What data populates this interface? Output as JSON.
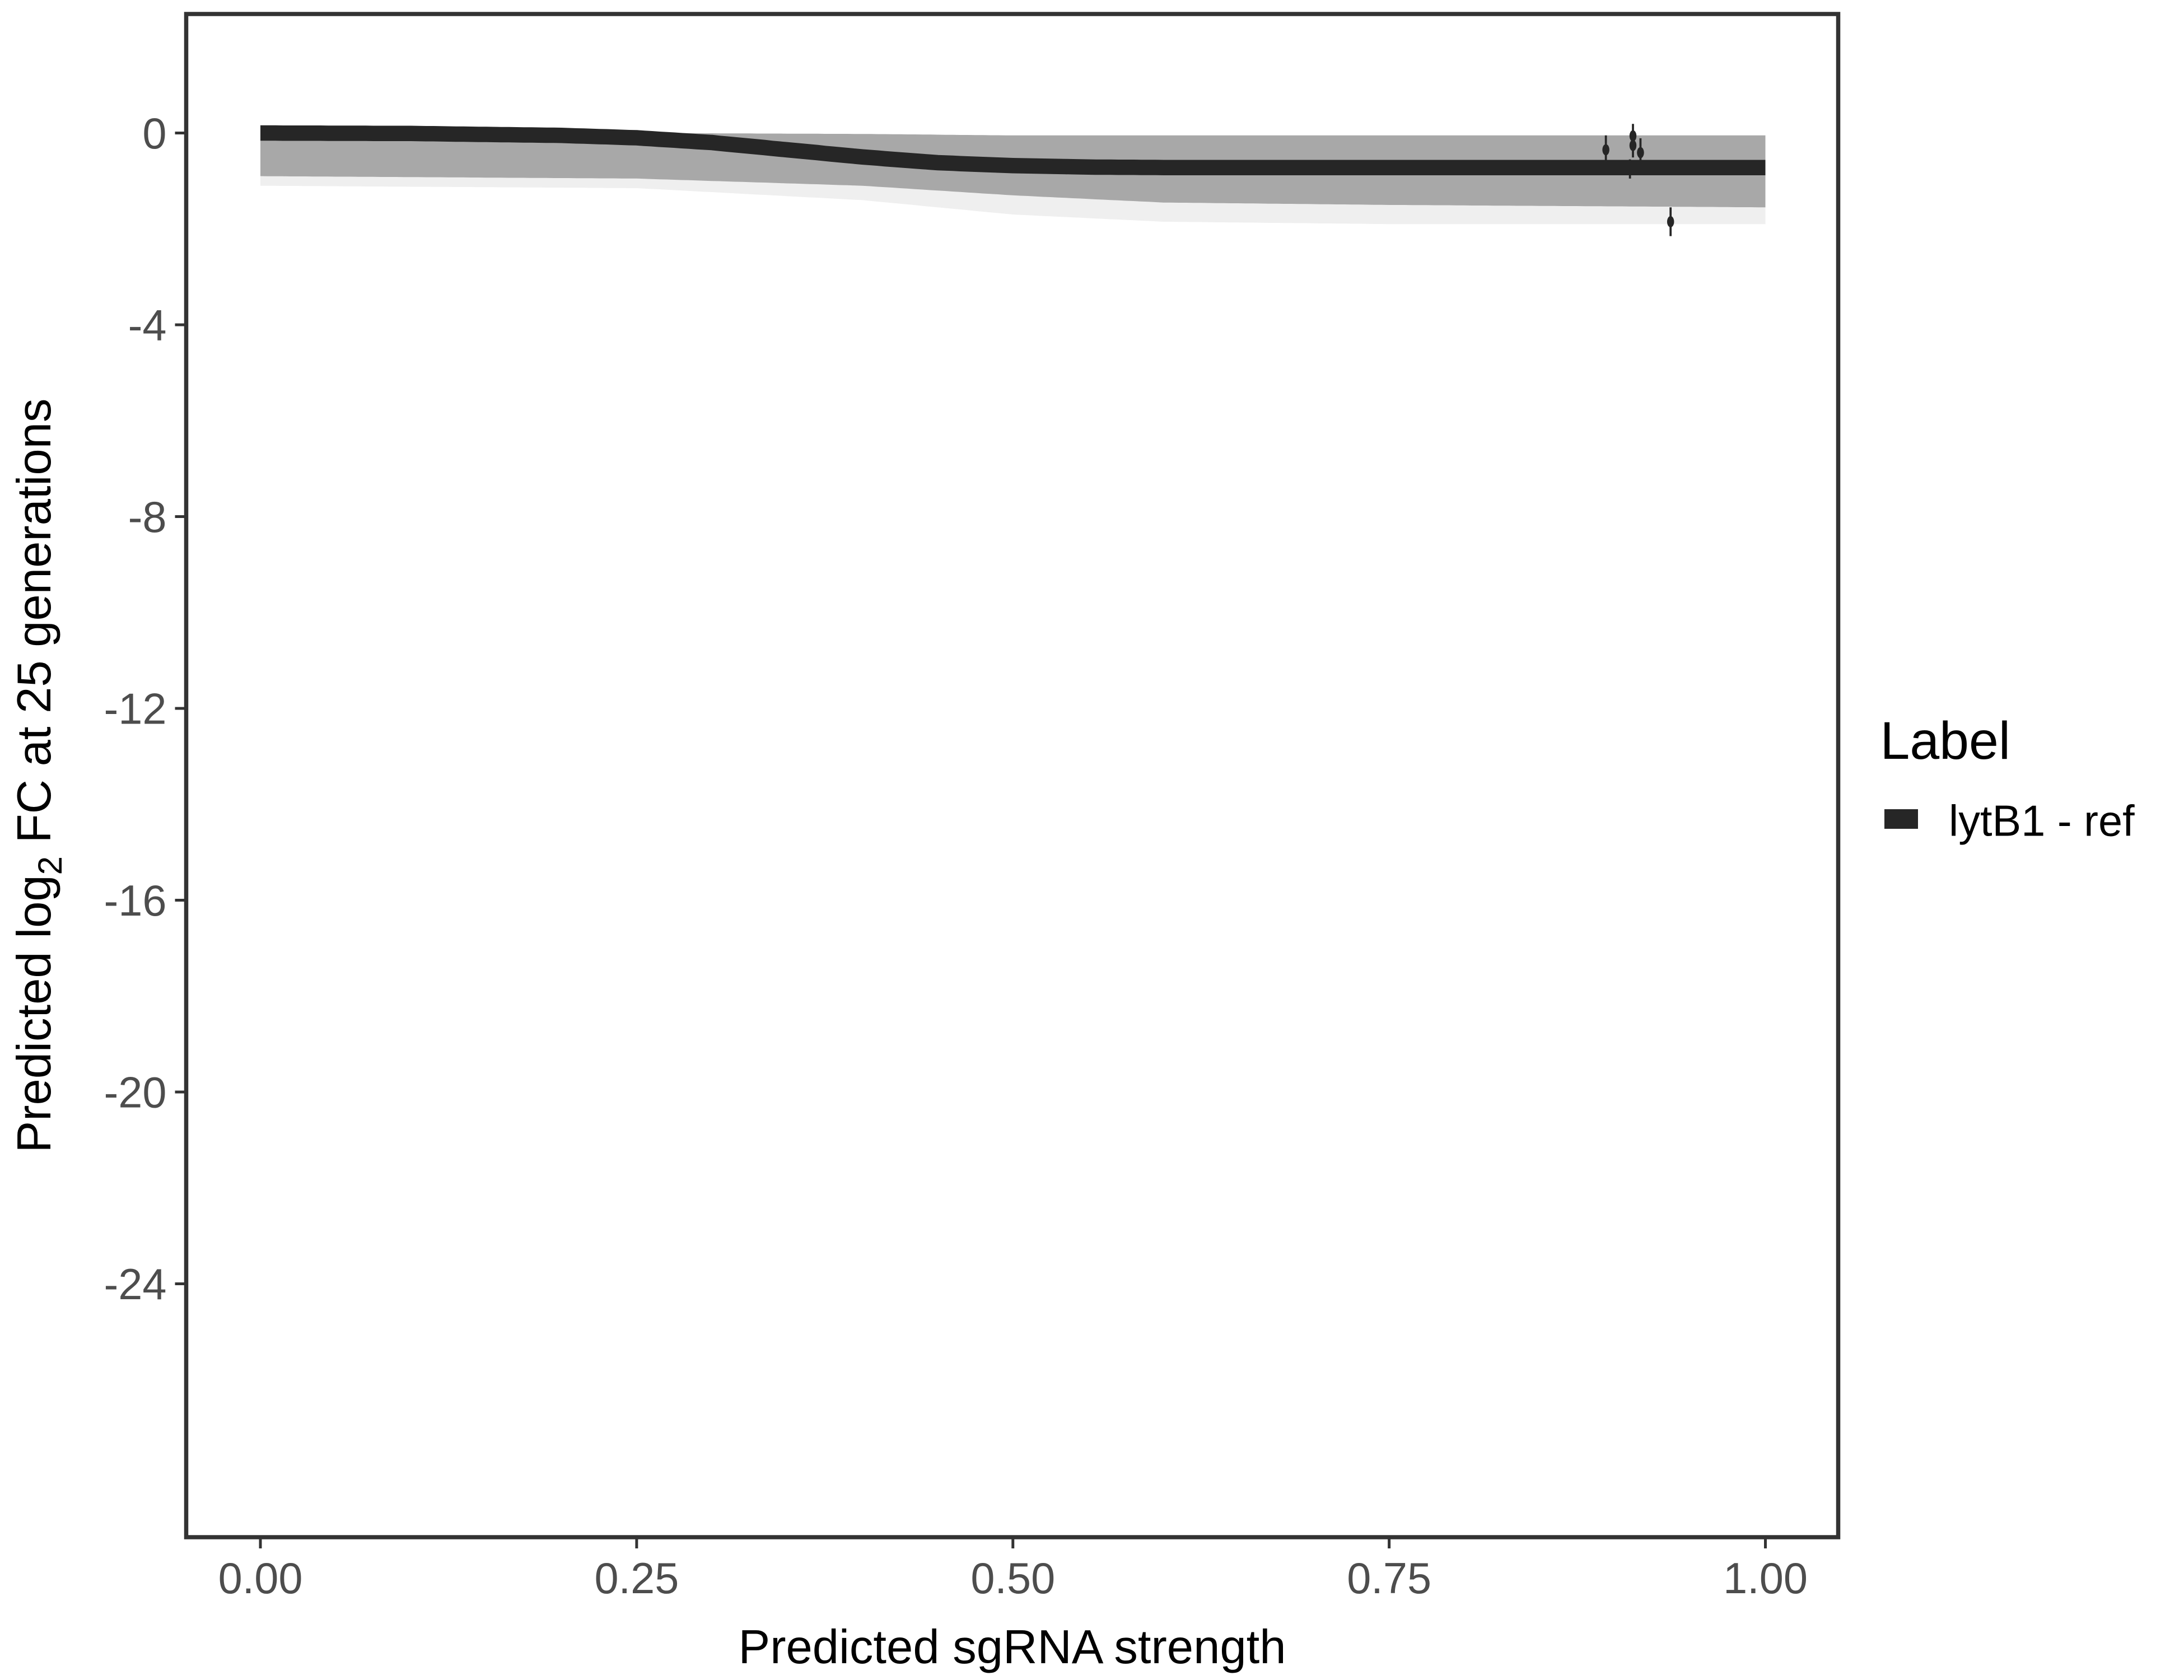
{
  "chart_data": {
    "type": "line",
    "xlabel": "Predicted sgRNA strength",
    "ylabel_prefix": "Predicted  log",
    "ylabel_sub": "2",
    "ylabel_suffix": " FC at 25 generations",
    "xlim": [
      -0.1,
      1.1
    ],
    "ylim": [
      -29.3,
      2.5
    ],
    "xticks": [
      0,
      0.25,
      0.5,
      0.75,
      1
    ],
    "xtick_labels": [
      "0.00",
      "0.25",
      "0.50",
      "0.75",
      "1.00"
    ],
    "yticks": [
      0,
      -4,
      -8,
      -12,
      -16,
      -20,
      -24
    ],
    "ytick_labels": [
      "0",
      "-4",
      "-8",
      "-12",
      "-16",
      "-20",
      "-24"
    ],
    "grid": false,
    "legend": {
      "title": "Label",
      "placement": "right",
      "entries": [
        {
          "label": "lytB1 - ref",
          "color": "#262626"
        }
      ]
    },
    "series": [
      {
        "name": "lytB1 - ref",
        "kind": "fit-line",
        "color": "#262626",
        "x": [
          0,
          0.1,
          0.2,
          0.25,
          0.3,
          0.35,
          0.4,
          0.45,
          0.5,
          0.55,
          0.6,
          0.7,
          0.8,
          0.9,
          1.0
        ],
        "y": [
          0,
          -0.01,
          -0.05,
          -0.1,
          -0.2,
          -0.35,
          -0.5,
          -0.62,
          -0.68,
          -0.71,
          -0.72,
          -0.72,
          -0.72,
          -0.72,
          -0.72
        ]
      }
    ],
    "posterior_band": {
      "color": "#a8a8a8",
      "x": [
        0,
        0.25,
        0.4,
        0.5,
        0.6,
        0.75,
        1.0
      ],
      "upper": [
        0,
        0,
        -0.02,
        -0.05,
        -0.05,
        -0.05,
        -0.05
      ],
      "lower": [
        -0.9,
        -0.95,
        -1.1,
        -1.3,
        -1.45,
        -1.5,
        -1.55
      ],
      "faint_lower": [
        -1.1,
        -1.15,
        -1.4,
        -1.7,
        -1.85,
        -1.9,
        -1.9
      ]
    },
    "points": {
      "color": "#262626",
      "x": [
        0.894,
        0.912,
        0.912,
        0.917,
        0.91,
        0.937
      ],
      "y": [
        -0.35,
        -0.06,
        -0.26,
        -0.41,
        -0.75,
        -1.85
      ],
      "err": [
        0.3,
        0.25,
        0.25,
        0.3,
        0.2,
        0.3
      ]
    }
  }
}
